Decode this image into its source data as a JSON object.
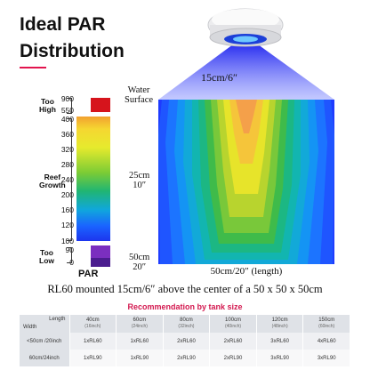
{
  "heading": {
    "line1": "Ideal PAR",
    "line2": "Distribution",
    "accent_color": "#e2144e"
  },
  "lamp": {
    "height_label": "15cm/6″",
    "icon": "reef-light-fixture"
  },
  "diagram": {
    "water_surface": [
      "Water",
      "Surface"
    ],
    "mid_depth": [
      "25cm",
      "10″"
    ],
    "bottom_depth": [
      "50cm",
      "20″"
    ],
    "length_label": "50cm/20″ (length)"
  },
  "par_scale": {
    "label": "PAR",
    "ticks": [
      "900",
      "550",
      "400",
      "360",
      "320",
      "280",
      "240",
      "200",
      "160",
      "120",
      "100",
      "90",
      "0"
    ],
    "too_high": [
      "Too",
      "High"
    ],
    "reef_growth": [
      "Reef",
      "Growth"
    ],
    "too_low": [
      "Too",
      "Low"
    ]
  },
  "caption": "RL60 mounted 15cm/6″ above the center of a 50 x 50 x 50cm",
  "recommendation": {
    "title": "Recommendation by tank size",
    "corner_length": "Length",
    "corner_width": "Width",
    "columns": [
      {
        "main": "40cm",
        "sub": "(16inch)"
      },
      {
        "main": "60cm",
        "sub": "(24inch)"
      },
      {
        "main": "80cm",
        "sub": "(32inch)"
      },
      {
        "main": "100cm",
        "sub": "(40inch)"
      },
      {
        "main": "120cm",
        "sub": "(48inch)"
      },
      {
        "main": "150cm",
        "sub": "(60inch)"
      }
    ],
    "rows": [
      {
        "width": "<50cm /20inch",
        "cells": [
          "1xRL60",
          "1xRL60",
          "2xRL60",
          "2xRL60",
          "3xRL60",
          "4xRL60"
        ]
      },
      {
        "width": "60cm/24inch",
        "cells": [
          "1xRL90",
          "1xRL90",
          "2xRL90",
          "2xRL90",
          "3xRL90",
          "3xRL90"
        ]
      }
    ]
  }
}
